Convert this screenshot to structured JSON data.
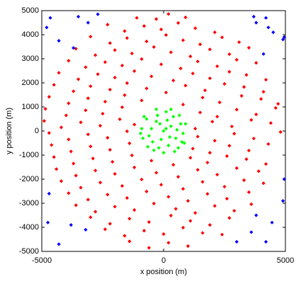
{
  "chart_data": {
    "type": "scatter",
    "xlabel": "x position (m)",
    "ylabel": "y position (m)",
    "xlim": [
      -5000,
      5000
    ],
    "ylim": [
      -5000,
      5000
    ],
    "xticks": [
      -5000,
      0,
      5000
    ],
    "yticks": [
      -5000,
      -4000,
      -3000,
      -2000,
      -1000,
      0,
      1000,
      2000,
      3000,
      4000,
      5000
    ],
    "series": [
      {
        "color": "#ff0000",
        "x": [
          -1100,
          -300,
          200,
          900,
          -2300,
          -1600,
          -800,
          -100,
          600,
          1300,
          2100,
          -3000,
          -2200,
          -1500,
          -700,
          100,
          800,
          1500,
          2400,
          3100,
          -3600,
          -2800,
          -2000,
          -1300,
          -400,
          300,
          1100,
          1900,
          2700,
          3500,
          -3900,
          -3200,
          -2400,
          -1700,
          -900,
          -100,
          700,
          1400,
          2200,
          3000,
          3800,
          -4300,
          -3500,
          -2700,
          -2000,
          -1200,
          -500,
          400,
          1200,
          1900,
          2700,
          3400,
          4200,
          -4500,
          -3700,
          -3000,
          -2200,
          -1500,
          -700,
          100,
          900,
          1700,
          2500,
          3300,
          4100,
          -4700,
          -3900,
          -3100,
          -2400,
          -1600,
          -900,
          800,
          1600,
          2300,
          3200,
          4000,
          4700,
          -4850,
          -4000,
          -3200,
          -2500,
          -1700,
          1500,
          2200,
          3000,
          3800,
          4600,
          -4900,
          -4200,
          -3400,
          -2600,
          -1800,
          -1200,
          1300,
          2000,
          2800,
          3600,
          4400,
          -4700,
          -3900,
          -3100,
          -2300,
          -1500,
          1400,
          2100,
          2900,
          3700,
          4800,
          -4600,
          -3800,
          -3000,
          -2200,
          -1400,
          1200,
          1900,
          2700,
          3500,
          4300,
          -4500,
          -3700,
          -2900,
          -2100,
          -1300,
          -500,
          400,
          1100,
          1800,
          2600,
          3400,
          4200,
          -4400,
          -3600,
          -2800,
          -2000,
          -1200,
          -300,
          600,
          1400,
          2200,
          3000,
          3900,
          -4200,
          -3400,
          -2600,
          -1700,
          -900,
          -100,
          800,
          1600,
          2500,
          3300,
          4100,
          -3900,
          -3100,
          -2300,
          -1500,
          -700,
          200,
          1000,
          1800,
          2600,
          3500,
          -3600,
          -2800,
          -2000,
          -1200,
          -400,
          500,
          1300,
          2100,
          2900,
          3600,
          -3000,
          -2200,
          -1400,
          -600,
          300,
          1100,
          1900,
          2700,
          -2400,
          -1600,
          -800,
          0,
          800,
          1600,
          2400,
          -1400,
          -600,
          200,
          1000
        ],
        "values": [
          4700,
          4650,
          4860,
          4720,
          4420,
          4150,
          4360,
          4220,
          4490,
          4270,
          4100,
          3920,
          3650,
          3860,
          3720,
          3990,
          3770,
          3600,
          3890,
          3690,
          3420,
          3150,
          3360,
          3220,
          3490,
          3270,
          3100,
          3390,
          3190,
          3460,
          2920,
          2650,
          2860,
          2720,
          2990,
          2770,
          2600,
          2890,
          2690,
          2960,
          2830,
          2420,
          2150,
          2360,
          2220,
          2490,
          2270,
          2100,
          2390,
          2190,
          2460,
          2330,
          2130,
          1920,
          1650,
          1860,
          1720,
          1990,
          1770,
          1600,
          1890,
          1690,
          1960,
          1830,
          1630,
          1420,
          1150,
          1360,
          1220,
          1490,
          1270,
          1100,
          1390,
          1190,
          1460,
          1330,
          1130,
          920,
          650,
          860,
          720,
          990,
          770,
          600,
          890,
          690,
          960,
          420,
          150,
          360,
          220,
          490,
          270,
          100,
          390,
          190,
          460,
          330,
          -80,
          -350,
          -140,
          -280,
          -10,
          -230,
          -400,
          -110,
          -310,
          -40,
          -580,
          -850,
          -640,
          -780,
          -510,
          -730,
          -900,
          -610,
          -810,
          -540,
          -1080,
          -1350,
          -1140,
          -1280,
          -1010,
          -1230,
          -1400,
          -1110,
          -1310,
          -1040,
          -1170,
          -1370,
          -1580,
          -1850,
          -1640,
          -1780,
          -1510,
          -1730,
          -1900,
          -1610,
          -1810,
          -1540,
          -1670,
          -2080,
          -2350,
          -2140,
          -2280,
          -2010,
          -2230,
          -2400,
          -2110,
          -2310,
          -2040,
          -2170,
          -2580,
          -2850,
          -2640,
          -2780,
          -2510,
          -2730,
          -2900,
          -2610,
          -2810,
          -2540,
          -3080,
          -3350,
          -3140,
          -3280,
          -3010,
          -3230,
          -3400,
          -3110,
          -3310,
          -3040,
          -3580,
          -3850,
          -3640,
          -3780,
          -3510,
          -3730,
          -3900,
          -3610,
          -4080,
          -4350,
          -4140,
          -4280,
          -4010,
          -4230,
          -4300,
          -4580,
          -4850,
          -4640,
          -4780
        ]
      },
      {
        "color": "#0000ff",
        "x": [
          -4650,
          -3500,
          -2700,
          -3100,
          -4300,
          -3700,
          -4800,
          3700,
          4200,
          3800,
          4500,
          4950,
          4900,
          4100,
          4300,
          -4700,
          -3800,
          -3200,
          -4300,
          -4750,
          4450,
          4900,
          4950,
          3800,
          3600,
          3000,
          4200
        ],
        "values": [
          4700,
          4750,
          4850,
          4500,
          3750,
          3450,
          4300,
          4750,
          4700,
          4500,
          4100,
          3900,
          3800,
          3200,
          4300,
          -2600,
          -3900,
          -4100,
          -4700,
          -3800,
          -3800,
          -2900,
          -2000,
          -3500,
          -4200,
          -4600,
          -4600
        ]
      },
      {
        "color": "#00ff00",
        "x": [
          0,
          300,
          -300,
          500,
          -600,
          200,
          -200,
          700,
          -700,
          100,
          -400,
          600,
          800,
          -900,
          400,
          -500,
          250,
          -150,
          650,
          -650,
          0,
          900,
          -850,
          300,
          -300,
          450,
          -800,
          150,
          -450,
          550,
          -100,
          750,
          -250,
          850,
          -950,
          100
        ],
        "values": [
          0,
          200,
          400,
          -300,
          -200,
          -600,
          -700,
          300,
          500,
          800,
          -800,
          -700,
          -100,
          100,
          600,
          100,
          -250,
          300,
          650,
          -650,
          -900,
          300,
          -300,
          900,
          900,
          -850,
          600,
          450,
          -450,
          50,
          -350,
          -450,
          650,
          -500,
          -100,
          100
        ]
      }
    ]
  }
}
